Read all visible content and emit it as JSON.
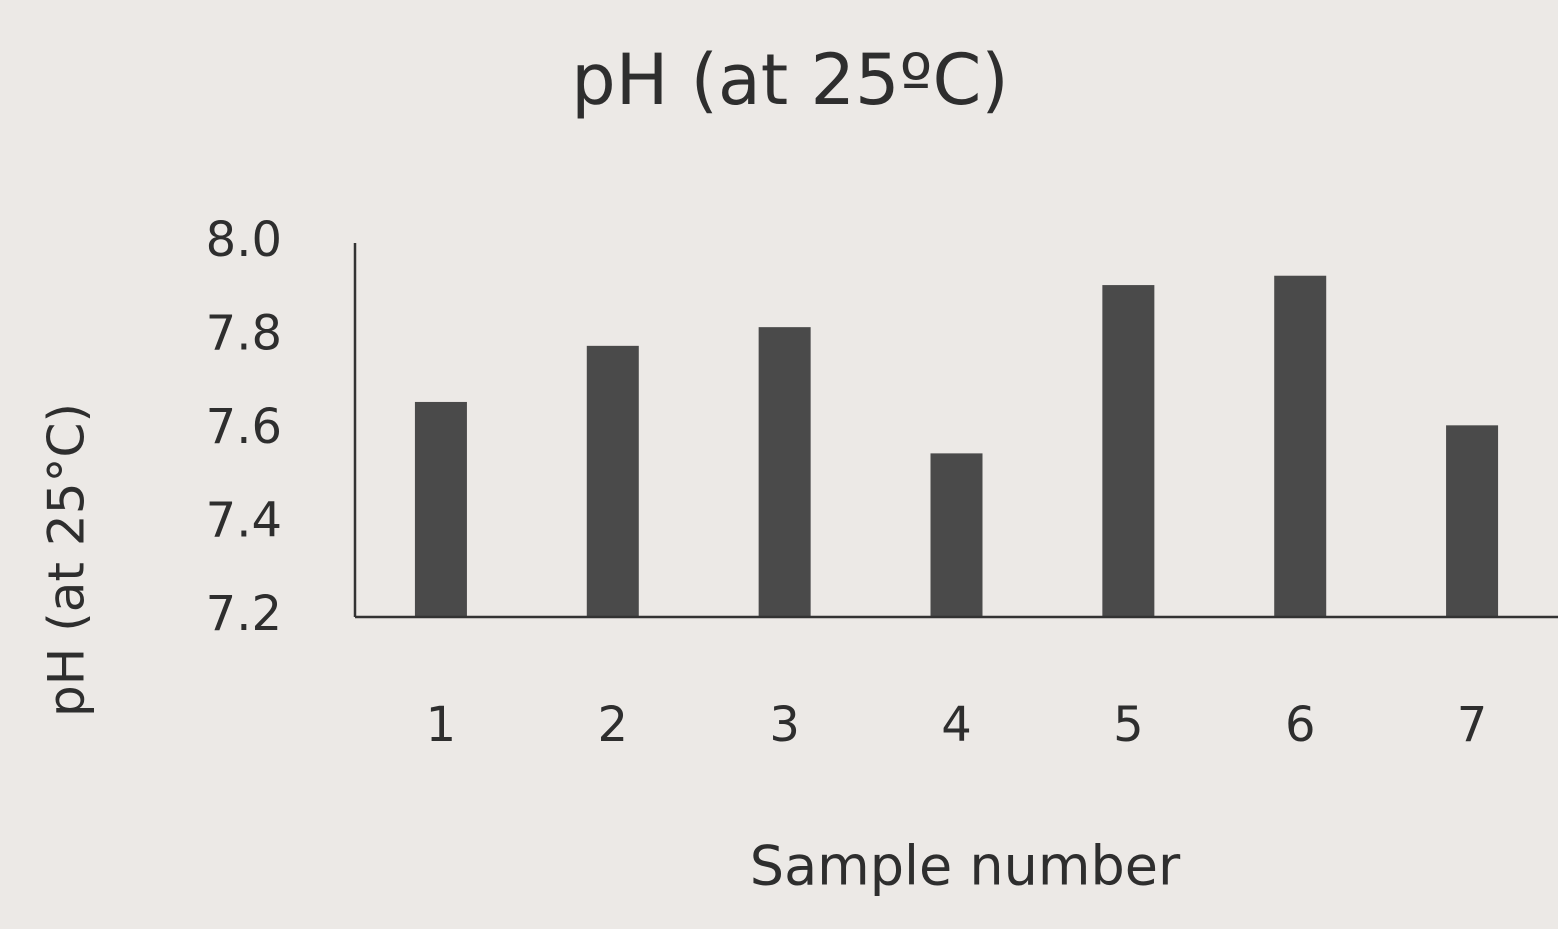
{
  "chart_data": {
    "type": "bar",
    "title": "pH (at 25ºC)",
    "x_label": "Sample number",
    "y_label": "pH (at 25°C)",
    "categories": [
      "1",
      "2",
      "3",
      "4",
      "5",
      "6",
      "7"
    ],
    "values": [
      7.66,
      7.78,
      7.82,
      7.55,
      7.91,
      7.93,
      7.61
    ],
    "color": "#4a4a4a",
    "ylim": [
      7.2,
      8.0
    ],
    "yticks": [
      7.2,
      7.4,
      7.6,
      7.8,
      {
        "value": 8.0,
        "label": "8.0"
      }
    ],
    "grid": false
  }
}
